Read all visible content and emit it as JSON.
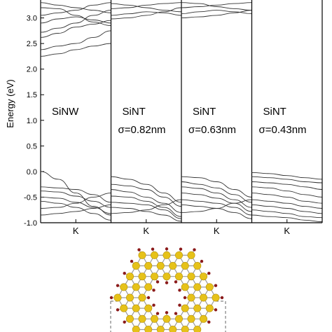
{
  "chart_data": {
    "type": "line",
    "ylabel": "Energy (eV)",
    "ylim": [
      -1.0,
      3.35
    ],
    "yticks": [
      -1.0,
      -0.5,
      0.0,
      0.5,
      1.0,
      1.5,
      2.0,
      2.5,
      3.0
    ],
    "ytick_labels": [
      "-1.0",
      "-0.5",
      "0.0",
      "0.5",
      "1.0",
      "1.5",
      "2.0",
      "2.5",
      "3.0"
    ],
    "xlim": [
      0,
      1
    ],
    "grid": false,
    "panels": [
      {
        "id": "sinw",
        "label_line1": "SiNW",
        "label_line2": "",
        "x_tick_label": "K",
        "series": [
          {
            "x": [
              0,
              0.25,
              0.5,
              0.75,
              1
            ],
            "values": [
              2.25,
              2.3,
              2.38,
              2.45,
              2.5
            ]
          },
          {
            "x": [
              0,
              0.25,
              0.5,
              0.75,
              1
            ],
            "values": [
              2.38,
              2.45,
              2.5,
              2.62,
              2.75
            ]
          },
          {
            "x": [
              0,
              0.25,
              0.5,
              0.75,
              1
            ],
            "values": [
              2.62,
              2.7,
              2.82,
              2.88,
              2.95
            ]
          },
          {
            "x": [
              0,
              0.25,
              0.5,
              0.75,
              1
            ],
            "values": [
              2.72,
              2.8,
              2.9,
              3.05,
              3.15
            ]
          },
          {
            "x": [
              0,
              0.25,
              0.5,
              0.75,
              1
            ],
            "values": [
              2.9,
              2.98,
              3.02,
              2.96,
              2.9
            ]
          },
          {
            "x": [
              0,
              0.25,
              0.5,
              0.75,
              1
            ],
            "values": [
              3.05,
              3.1,
              3.15,
              3.25,
              3.3
            ]
          },
          {
            "x": [
              0,
              0.25,
              0.5,
              0.75,
              1
            ],
            "values": [
              3.2,
              3.18,
              3.05,
              2.92,
              2.85
            ]
          },
          {
            "x": [
              0,
              0.25,
              0.5,
              0.75,
              1
            ],
            "values": [
              3.3,
              3.25,
              3.2,
              3.15,
              3.1
            ]
          },
          {
            "x": [
              0,
              0.25,
              0.5,
              0.75,
              1
            ],
            "values": [
              0.0,
              -0.15,
              -0.42,
              -0.68,
              -0.85
            ]
          },
          {
            "x": [
              0,
              0.25,
              0.5,
              0.75,
              1
            ],
            "values": [
              -0.3,
              -0.32,
              -0.35,
              -0.45,
              -0.6
            ]
          },
          {
            "x": [
              0,
              0.25,
              0.5,
              0.75,
              1
            ],
            "values": [
              -0.38,
              -0.4,
              -0.48,
              -0.58,
              -0.7
            ]
          },
          {
            "x": [
              0,
              0.25,
              0.5,
              0.75,
              1
            ],
            "values": [
              -0.5,
              -0.52,
              -0.6,
              -0.7,
              -0.82
            ]
          },
          {
            "x": [
              0,
              0.25,
              0.5,
              0.75,
              1
            ],
            "values": [
              -0.58,
              -0.62,
              -0.7,
              -0.82,
              -0.95
            ]
          },
          {
            "x": [
              0,
              0.25,
              0.5,
              0.75,
              1
            ],
            "values": [
              -0.72,
              -0.7,
              -0.62,
              -0.5,
              -0.42
            ]
          },
          {
            "x": [
              0,
              0.25,
              0.5,
              0.75,
              1
            ],
            "values": [
              -0.85,
              -0.82,
              -0.78,
              -0.72,
              -0.65
            ]
          }
        ]
      },
      {
        "id": "sint-082",
        "label_line1": "SiNT",
        "label_line2": "σ=0.82nm",
        "x_tick_label": "K",
        "series": [
          {
            "x": [
              0,
              0.25,
              0.5,
              0.75,
              1
            ],
            "values": [
              2.98,
              3.0,
              3.05,
              3.12,
              3.2
            ]
          },
          {
            "x": [
              0,
              0.25,
              0.5,
              0.75,
              1
            ],
            "values": [
              3.05,
              3.08,
              3.12,
              3.1,
              3.05
            ]
          },
          {
            "x": [
              0,
              0.25,
              0.5,
              0.75,
              1
            ],
            "values": [
              3.18,
              3.2,
              3.25,
              3.28,
              3.3
            ]
          },
          {
            "x": [
              0,
              0.25,
              0.5,
              0.75,
              1
            ],
            "values": [
              3.28,
              3.25,
              3.2,
              3.15,
              3.12
            ]
          },
          {
            "x": [
              0,
              0.25,
              0.5,
              0.75,
              1
            ],
            "values": [
              -0.1,
              -0.15,
              -0.25,
              -0.42,
              -0.6
            ]
          },
          {
            "x": [
              0,
              0.25,
              0.5,
              0.75,
              1
            ],
            "values": [
              -0.25,
              -0.28,
              -0.35,
              -0.5,
              -0.68
            ]
          },
          {
            "x": [
              0,
              0.25,
              0.5,
              0.75,
              1
            ],
            "values": [
              -0.35,
              -0.4,
              -0.5,
              -0.62,
              -0.8
            ]
          },
          {
            "x": [
              0,
              0.25,
              0.5,
              0.75,
              1
            ],
            "values": [
              -0.48,
              -0.5,
              -0.58,
              -0.7,
              -0.88
            ]
          },
          {
            "x": [
              0,
              0.25,
              0.5,
              0.75,
              1
            ],
            "values": [
              -0.6,
              -0.62,
              -0.65,
              -0.75,
              -0.92
            ]
          },
          {
            "x": [
              0,
              0.25,
              0.5,
              0.75,
              1
            ],
            "values": [
              -0.7,
              -0.72,
              -0.78,
              -0.85,
              -0.97
            ]
          },
          {
            "x": [
              0,
              0.25,
              0.5,
              0.75,
              1
            ],
            "values": [
              -0.82,
              -0.8,
              -0.75,
              -0.65,
              -0.55
            ]
          }
        ]
      },
      {
        "id": "sint-063",
        "label_line1": "SiNT",
        "label_line2": "σ=0.63nm",
        "x_tick_label": "K",
        "series": [
          {
            "x": [
              0,
              0.25,
              0.5,
              0.75,
              1
            ],
            "values": [
              3.0,
              3.02,
              3.05,
              3.1,
              3.15
            ]
          },
          {
            "x": [
              0,
              0.25,
              0.5,
              0.75,
              1
            ],
            "values": [
              3.08,
              3.12,
              3.15,
              3.12,
              3.08
            ]
          },
          {
            "x": [
              0,
              0.25,
              0.5,
              0.75,
              1
            ],
            "values": [
              3.2,
              3.22,
              3.25,
              3.28,
              3.3
            ]
          },
          {
            "x": [
              0,
              0.25,
              0.5,
              0.75,
              1
            ],
            "values": [
              3.3,
              3.28,
              3.22,
              3.18,
              3.15
            ]
          },
          {
            "x": [
              0,
              0.25,
              0.5,
              0.75,
              1
            ],
            "values": [
              -0.1,
              -0.12,
              -0.2,
              -0.35,
              -0.5
            ]
          },
          {
            "x": [
              0,
              0.25,
              0.5,
              0.75,
              1
            ],
            "values": [
              -0.2,
              -0.25,
              -0.32,
              -0.45,
              -0.6
            ]
          },
          {
            "x": [
              0,
              0.25,
              0.5,
              0.75,
              1
            ],
            "values": [
              -0.3,
              -0.33,
              -0.42,
              -0.55,
              -0.7
            ]
          },
          {
            "x": [
              0,
              0.25,
              0.5,
              0.75,
              1
            ],
            "values": [
              -0.42,
              -0.45,
              -0.52,
              -0.62,
              -0.78
            ]
          },
          {
            "x": [
              0,
              0.25,
              0.5,
              0.75,
              1
            ],
            "values": [
              -0.55,
              -0.58,
              -0.62,
              -0.7,
              -0.85
            ]
          },
          {
            "x": [
              0,
              0.25,
              0.5,
              0.75,
              1
            ],
            "values": [
              -0.65,
              -0.68,
              -0.72,
              -0.8,
              -0.92
            ]
          },
          {
            "x": [
              0,
              0.25,
              0.5,
              0.75,
              1
            ],
            "values": [
              -0.8,
              -0.78,
              -0.72,
              -0.62,
              -0.55
            ]
          }
        ]
      },
      {
        "id": "sint-043",
        "label_line1": "SiNT",
        "label_line2": "σ=0.43nm",
        "x_tick_label": "K",
        "series": [
          {
            "x": [
              0,
              0.25,
              0.5,
              0.75,
              1
            ],
            "values": [
              -0.02,
              -0.04,
              -0.08,
              -0.12,
              -0.15
            ]
          },
          {
            "x": [
              0,
              0.25,
              0.5,
              0.75,
              1
            ],
            "values": [
              -0.1,
              -0.12,
              -0.15,
              -0.2,
              -0.22
            ]
          },
          {
            "x": [
              0,
              0.25,
              0.5,
              0.75,
              1
            ],
            "values": [
              -0.2,
              -0.22,
              -0.25,
              -0.3,
              -0.35
            ]
          },
          {
            "x": [
              0,
              0.25,
              0.5,
              0.75,
              1
            ],
            "values": [
              -0.3,
              -0.32,
              -0.38,
              -0.45,
              -0.5
            ]
          },
          {
            "x": [
              0,
              0.25,
              0.5,
              0.75,
              1
            ],
            "values": [
              -0.42,
              -0.45,
              -0.5,
              -0.58,
              -0.62
            ]
          },
          {
            "x": [
              0,
              0.25,
              0.5,
              0.75,
              1
            ],
            "values": [
              -0.55,
              -0.58,
              -0.62,
              -0.68,
              -0.72
            ]
          },
          {
            "x": [
              0,
              0.25,
              0.5,
              0.75,
              1
            ],
            "values": [
              -0.65,
              -0.68,
              -0.72,
              -0.78,
              -0.82
            ]
          },
          {
            "x": [
              0,
              0.25,
              0.5,
              0.75,
              1
            ],
            "values": [
              -0.75,
              -0.78,
              -0.82,
              -0.88,
              -0.9
            ]
          },
          {
            "x": [
              0,
              0.25,
              0.5,
              0.75,
              1
            ],
            "values": [
              -0.85,
              -0.88,
              -0.9,
              -0.95,
              -0.98
            ]
          }
        ]
      }
    ]
  },
  "structure_figure": {
    "atom_colors": {
      "silicon": "#e6c219",
      "hydrogen": "#8b1a1a"
    },
    "bond_color": "#9a9a9a"
  },
  "colors": {
    "band_line": "#333333",
    "axis": "#000000",
    "dashed": "#666666"
  }
}
